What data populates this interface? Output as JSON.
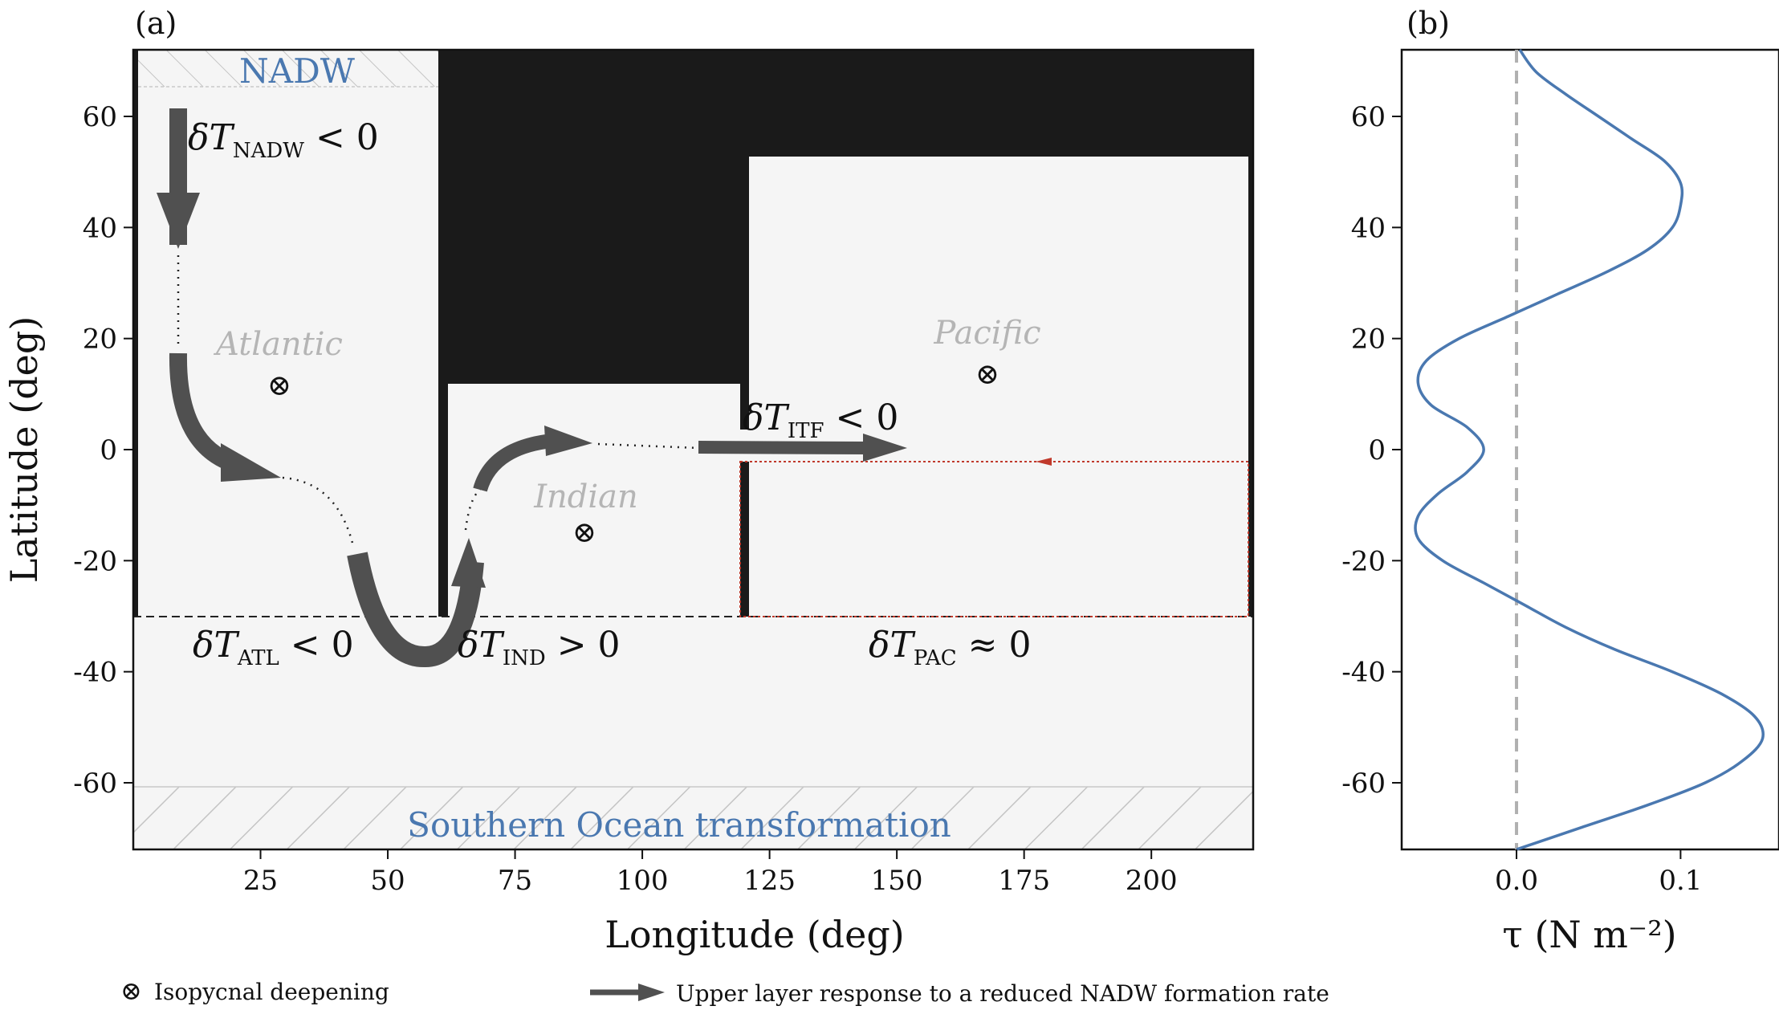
{
  "chart_data": [
    {
      "type": "diagram-map",
      "panel_label": "(a)",
      "xlabel": "Longitude (deg)",
      "ylabel": "Latitude (deg)",
      "xlim": [
        0,
        220
      ],
      "ylim": [
        -72,
        72
      ],
      "xticks": [
        "25",
        "50",
        "75",
        "100",
        "125",
        "150",
        "175",
        "200"
      ],
      "xtick_values": [
        25,
        50,
        75,
        100,
        125,
        150,
        175,
        200
      ],
      "yticks": [
        "60",
        "40",
        "20",
        "0",
        "-20",
        "-40",
        "-60"
      ],
      "ytick_values": [
        60,
        40,
        20,
        0,
        -20,
        -40,
        -60
      ],
      "basins": [
        "Atlantic",
        "Indian",
        "Pacific"
      ],
      "regions": {
        "nadw": "NADW",
        "southern_ocean": "Southern Ocean transformation"
      },
      "annotations": {
        "nadw_base": "δT",
        "nadw_sub": "NADW",
        "nadw_rel": " < 0",
        "itf_base": "δT",
        "itf_sub": "ITF",
        "itf_rel": " < 0",
        "atl_base": "δT",
        "atl_sub": "ATL",
        "atl_rel": " < 0",
        "ind_base": "δT",
        "ind_sub": "IND",
        "ind_rel": " > 0",
        "pac_base": "δT",
        "pac_sub": "PAC",
        "pac_rel": " ≈ 0"
      },
      "boundary_lat": -30,
      "isopycnal_symbol": "⊗",
      "colors": {
        "land": "#1a1a1a",
        "ocean": "#f5f5f5",
        "arrow": "#505050",
        "blue": "#4a78b0",
        "red": "#c0392b"
      }
    },
    {
      "type": "line",
      "panel_label": "(b)",
      "xlabel": "τ (N m⁻²)",
      "ylabel": "",
      "xlim": [
        -0.07,
        0.16
      ],
      "ylim": [
        -72,
        72
      ],
      "xticks": [
        "0.0",
        "0.1"
      ],
      "xtick_values": [
        0.0,
        0.1
      ],
      "yticks": [
        "60",
        "40",
        "20",
        "0",
        "-20",
        "-40",
        "-60"
      ],
      "ytick_values": [
        60,
        40,
        20,
        0,
        -20,
        -40,
        -60
      ],
      "series": [
        {
          "color": "#4a78b0",
          "lat": [
            -72,
            -68,
            -64,
            -60,
            -56,
            -52,
            -48,
            -44,
            -40,
            -36,
            -32,
            -28,
            -24,
            -20,
            -16,
            -12,
            -8,
            -4,
            0,
            4,
            8,
            12,
            16,
            20,
            24,
            28,
            32,
            36,
            40,
            44,
            48,
            52,
            56,
            60,
            64,
            68,
            72
          ],
          "tau": [
            0.0,
            0.04,
            0.08,
            0.115,
            0.138,
            0.15,
            0.145,
            0.125,
            0.095,
            0.06,
            0.03,
            0.005,
            -0.02,
            -0.045,
            -0.06,
            -0.06,
            -0.048,
            -0.03,
            -0.02,
            -0.03,
            -0.052,
            -0.06,
            -0.055,
            -0.035,
            -0.005,
            0.025,
            0.055,
            0.08,
            0.095,
            0.1,
            0.1,
            0.09,
            0.07,
            0.05,
            0.03,
            0.012,
            0.002
          ]
        }
      ],
      "zero_line": true
    }
  ],
  "legend": {
    "isopycnal_symbol": "⊗",
    "isopycnal_text": "Isopycnal deepening",
    "arrow_text": "Upper layer response to a reduced NADW formation rate"
  }
}
